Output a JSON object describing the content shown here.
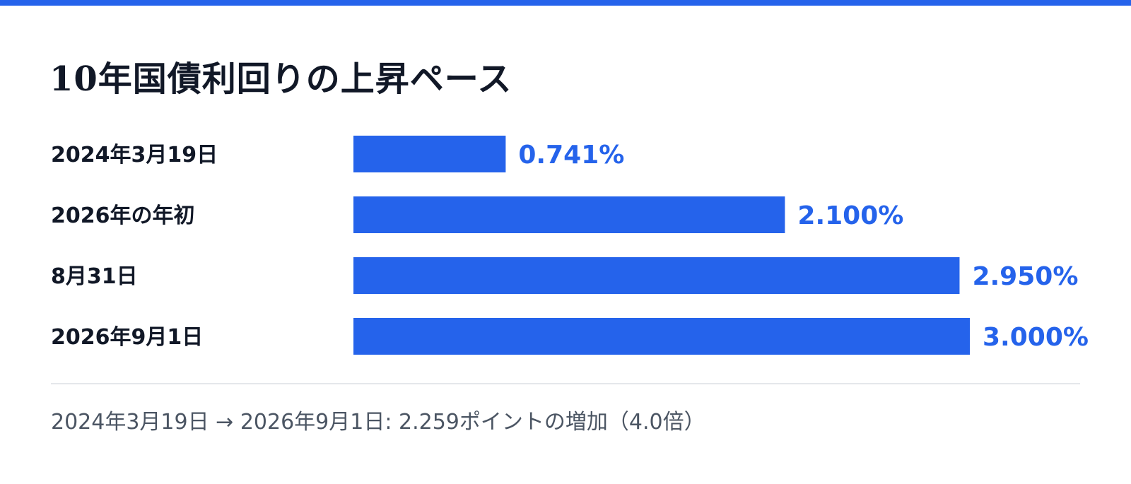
{
  "title": "10年国債利回りの上昇ペース",
  "summary": "2024年3月19日 → 2026年9月1日: 2.259ポイントの増加（4.0倍）",
  "colors": {
    "accent": "#2563eb",
    "label": "#111827",
    "summary": "#4b5563",
    "divider": "#e5e7eb"
  },
  "chart_data": {
    "type": "bar",
    "orientation": "horizontal",
    "categories": [
      "2024年3月19日",
      "2026年の年初",
      "8月31日",
      "2026年9月1日"
    ],
    "values": [
      0.741,
      2.1,
      2.95,
      3.0
    ],
    "value_labels": [
      "0.741%",
      "2.100%",
      "2.950%",
      "3.000%"
    ],
    "unit": "%",
    "xlim": [
      0,
      3.0
    ],
    "grid": false,
    "legend": false
  }
}
